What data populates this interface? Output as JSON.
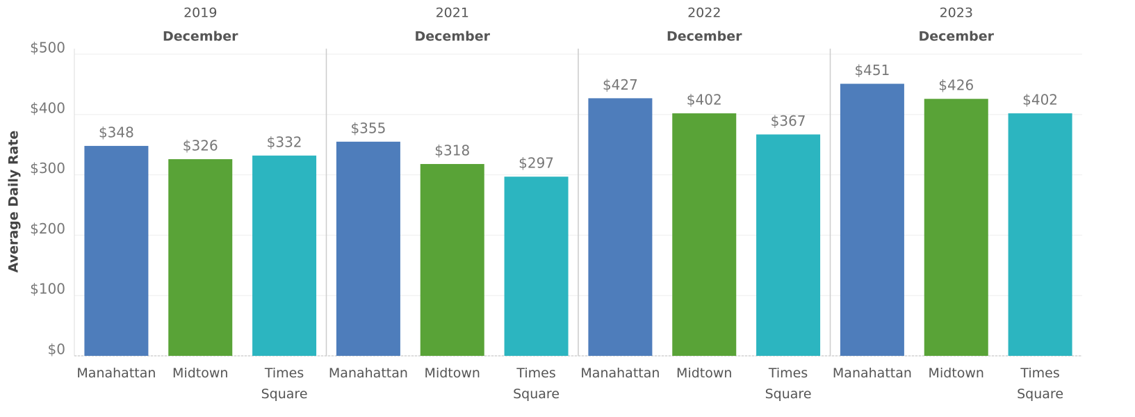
{
  "chart_data": {
    "type": "bar",
    "y_label": "Average Daily Rate",
    "categories": [
      "Manahattan",
      "Midtown",
      "Times Square"
    ],
    "colors": [
      "#4e7dbb",
      "#59a337",
      "#2cb5c0"
    ],
    "ylim": [
      0,
      500
    ],
    "yticks": [
      {
        "value": 0,
        "label": "$0"
      },
      {
        "value": 100,
        "label": "$100"
      },
      {
        "value": 200,
        "label": "$200"
      },
      {
        "value": 300,
        "label": "$300"
      },
      {
        "value": 400,
        "label": "$400"
      },
      {
        "value": 500,
        "label": "$500"
      }
    ],
    "grid": true,
    "panels": [
      {
        "year": "2019",
        "month": "December",
        "values": [
          348,
          326,
          332
        ],
        "value_labels": [
          "$348",
          "$326",
          "$332"
        ]
      },
      {
        "year": "2021",
        "month": "December",
        "values": [
          355,
          318,
          297
        ],
        "value_labels": [
          "$355",
          "$318",
          "$297"
        ]
      },
      {
        "year": "2022",
        "month": "December",
        "values": [
          427,
          402,
          367
        ],
        "value_labels": [
          "$427",
          "$402",
          "$367"
        ]
      },
      {
        "year": "2023",
        "month": "December",
        "values": [
          451,
          426,
          402
        ],
        "value_labels": [
          "$451",
          "$426",
          "$402"
        ]
      }
    ]
  }
}
